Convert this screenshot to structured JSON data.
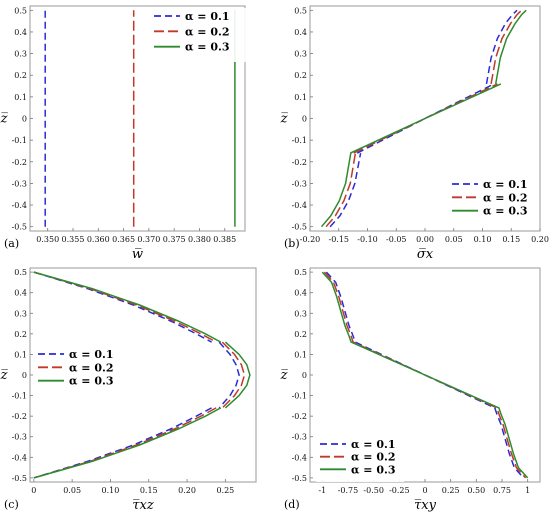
{
  "colors": {
    "alpha_0_1": "#2b2bd6",
    "alpha_0_2": "#c0392b",
    "alpha_0_3": "#2e8b2e"
  },
  "legend_entries": [
    "α = 0.1",
    "α = 0.2",
    "α = 0.3"
  ],
  "chart_data": [
    {
      "type": "line",
      "panel_label": "(a)",
      "xlabel": "w̅",
      "ylabel": "z̅",
      "xlim": [
        0.3465,
        0.389
      ],
      "ylim": [
        -0.52,
        0.52
      ],
      "xticks": [
        0.35,
        0.355,
        0.36,
        0.365,
        0.37,
        0.375,
        0.38,
        0.385
      ],
      "xtick_labels": [
        "0.350",
        "0.355",
        "0.360",
        "0.365",
        "0.370",
        "0.375",
        "0.380",
        "0.385"
      ],
      "yticks": [
        -0.5,
        -0.4,
        -0.3,
        -0.2,
        -0.1,
        0,
        0.1,
        0.2,
        0.3,
        0.4,
        0.5
      ],
      "ytick_labels": [
        "-0.5",
        "-0.4",
        "-0.3",
        "-0.2",
        "-0.1",
        "0",
        "0.1",
        "0.2",
        "0.3",
        "0.4",
        "0.5"
      ],
      "legend_position": "top-right",
      "series": [
        {
          "name": "α = 0.1",
          "x": [
            0.3495,
            0.3495
          ],
          "y": [
            -0.5,
            0.5
          ]
        },
        {
          "name": "α = 0.2",
          "x": [
            0.367,
            0.367
          ],
          "y": [
            -0.5,
            0.5
          ]
        },
        {
          "name": "α = 0.3",
          "x": [
            0.387,
            0.387
          ],
          "y": [
            -0.5,
            0.5
          ]
        }
      ]
    },
    {
      "type": "line",
      "panel_label": "(b)",
      "xlabel": "σ̅x",
      "ylabel": "z̅",
      "xlim": [
        -0.2,
        0.2
      ],
      "ylim": [
        -0.52,
        0.52
      ],
      "xticks": [
        -0.2,
        -0.15,
        -0.1,
        -0.05,
        0,
        0.05,
        0.1,
        0.15,
        0.2
      ],
      "xtick_labels": [
        "-0.20",
        "-0.15",
        "-0.10",
        "-0.05",
        "0.00",
        "0.05",
        "0.10",
        "0.15",
        "0.20"
      ],
      "yticks": [
        -0.5,
        -0.4,
        -0.3,
        -0.2,
        -0.1,
        0,
        0.1,
        0.2,
        0.3,
        0.4,
        0.5
      ],
      "ytick_labels": [
        "-0.5",
        "-0.4",
        "-0.3",
        "-0.2",
        "-0.1",
        "0",
        "0.1",
        "0.2",
        "0.3",
        "0.4",
        "0.5"
      ],
      "legend_position": "bottom-right",
      "series": [
        {
          "name": "α = 0.1",
          "x": [
            -0.165,
            -0.148,
            -0.133,
            -0.122,
            -0.112,
            null,
            -0.118,
            0,
            0.12,
            null,
            0.107,
            0.115,
            0.126,
            0.14,
            0.152,
            0.16
          ],
          "y": [
            -0.5,
            -0.45,
            -0.38,
            -0.3,
            -0.16,
            null,
            -0.16,
            0,
            0.16,
            null,
            0.16,
            0.28,
            0.37,
            0.44,
            0.48,
            0.5
          ]
        },
        {
          "name": "α = 0.2",
          "x": [
            -0.172,
            -0.156,
            -0.141,
            -0.13,
            -0.121,
            null,
            -0.124,
            0,
            0.126,
            null,
            0.115,
            0.123,
            0.134,
            0.149,
            0.16,
            0.168
          ],
          "y": [
            -0.5,
            -0.45,
            -0.38,
            -0.3,
            -0.16,
            null,
            -0.16,
            0,
            0.16,
            null,
            0.16,
            0.28,
            0.37,
            0.44,
            0.48,
            0.5
          ]
        },
        {
          "name": "α = 0.3",
          "x": [
            -0.18,
            -0.164,
            -0.149,
            -0.138,
            -0.129,
            null,
            -0.13,
            0,
            0.132,
            null,
            0.123,
            0.131,
            0.142,
            0.157,
            0.168,
            0.176
          ],
          "y": [
            -0.5,
            -0.45,
            -0.38,
            -0.3,
            -0.16,
            null,
            -0.16,
            0,
            0.16,
            null,
            0.16,
            0.28,
            0.37,
            0.44,
            0.48,
            0.5
          ]
        }
      ]
    },
    {
      "type": "line",
      "panel_label": "(c)",
      "xlabel": "τ̅xz",
      "ylabel": "z̅",
      "xlim": [
        -0.005,
        0.29
      ],
      "ylim": [
        -0.52,
        0.52
      ],
      "xticks": [
        0,
        0.05,
        0.1,
        0.15,
        0.2,
        0.25
      ],
      "xtick_labels": [
        "0",
        "0.05",
        "0.10",
        "0.15",
        "0.20",
        "0.25"
      ],
      "yticks": [
        -0.5,
        -0.4,
        -0.3,
        -0.2,
        -0.1,
        0,
        0.1,
        0.2,
        0.3,
        0.4,
        0.5
      ],
      "ytick_labels": [
        "-0.5",
        "-0.4",
        "-0.3",
        "-0.2",
        "-0.1",
        "0",
        "0.1",
        "0.2",
        "0.3",
        "0.4",
        "0.5"
      ],
      "legend_position": "center-left",
      "series": [
        {
          "name": "α = 0.1",
          "x": [
            0,
            0.07,
            0.13,
            0.18,
            0.212,
            0.232,
            null,
            0.242,
            0.256,
            0.264,
            0.268,
            0.264,
            0.256,
            0.242,
            null,
            0.232,
            0.212,
            0.18,
            0.13,
            0.07,
            0
          ],
          "y": [
            0.5,
            0.42,
            0.34,
            0.26,
            0.2,
            0.16,
            null,
            0.16,
            0.1,
            0.05,
            0,
            -0.05,
            -0.1,
            -0.16,
            null,
            -0.16,
            -0.2,
            -0.26,
            -0.34,
            -0.42,
            -0.5
          ]
        },
        {
          "name": "α = 0.2",
          "x": [
            0,
            0.073,
            0.134,
            0.185,
            0.218,
            0.238,
            null,
            0.246,
            0.262,
            0.271,
            0.275,
            0.271,
            0.262,
            0.246,
            null,
            0.238,
            0.218,
            0.185,
            0.134,
            0.073,
            0
          ],
          "y": [
            0.5,
            0.42,
            0.34,
            0.26,
            0.2,
            0.16,
            null,
            0.16,
            0.1,
            0.05,
            0,
            -0.05,
            -0.1,
            -0.16,
            null,
            -0.16,
            -0.2,
            -0.26,
            -0.34,
            -0.42,
            -0.5
          ]
        },
        {
          "name": "α = 0.3",
          "x": [
            0,
            0.076,
            0.138,
            0.19,
            0.224,
            0.244,
            null,
            0.25,
            0.268,
            0.278,
            0.282,
            0.278,
            0.268,
            0.25,
            null,
            0.244,
            0.224,
            0.19,
            0.138,
            0.076,
            0
          ],
          "y": [
            0.5,
            0.42,
            0.34,
            0.26,
            0.2,
            0.16,
            null,
            0.16,
            0.1,
            0.05,
            0,
            -0.05,
            -0.1,
            -0.16,
            null,
            -0.16,
            -0.2,
            -0.26,
            -0.34,
            -0.42,
            -0.5
          ]
        }
      ]
    },
    {
      "type": "line",
      "panel_label": "(d)",
      "xlabel": "τ̅xy",
      "ylabel": "z̅",
      "xlim": [
        -1.12,
        1.12
      ],
      "ylim": [
        -0.52,
        0.52
      ],
      "xticks": [
        -1,
        -0.75,
        -0.5,
        -0.25,
        0,
        0.25,
        0.5,
        0.75,
        1
      ],
      "xtick_labels": [
        "-1",
        "-0.75",
        "-0.50",
        "-0.25",
        "0",
        "0.25",
        "0.50",
        "0.75",
        "1"
      ],
      "yticks": [
        -0.5,
        -0.4,
        -0.3,
        -0.2,
        -0.1,
        0,
        0.1,
        0.2,
        0.3,
        0.4,
        0.5
      ],
      "ytick_labels": [
        "-0.5",
        "-0.4",
        "-0.3",
        "-0.2",
        "-0.1",
        "0",
        "0.1",
        "0.2",
        "0.3",
        "0.4",
        "0.5"
      ],
      "legend_position": "bottom-left",
      "series": [
        {
          "name": "α = 0.1",
          "x": [
            -0.96,
            -0.87,
            -0.82,
            -0.78,
            -0.74,
            -0.7,
            -0.68,
            0,
            0.68,
            0.7,
            0.74,
            0.78,
            0.82,
            0.87,
            0.96
          ],
          "y": [
            0.5,
            0.45,
            0.38,
            0.31,
            0.24,
            0.19,
            0.16,
            0,
            -0.16,
            -0.19,
            -0.24,
            -0.31,
            -0.38,
            -0.45,
            -0.5
          ]
        },
        {
          "name": "α = 0.2",
          "x": [
            -0.98,
            -0.89,
            -0.84,
            -0.8,
            -0.76,
            -0.72,
            -0.7,
            0,
            0.7,
            0.72,
            0.76,
            0.8,
            0.84,
            0.89,
            0.98
          ],
          "y": [
            0.5,
            0.45,
            0.38,
            0.31,
            0.24,
            0.19,
            0.16,
            0,
            -0.16,
            -0.19,
            -0.24,
            -0.31,
            -0.38,
            -0.45,
            -0.5
          ]
        },
        {
          "name": "α = 0.3",
          "x": [
            -1.0,
            -0.91,
            -0.86,
            -0.82,
            -0.78,
            -0.74,
            -0.72,
            0,
            0.72,
            0.74,
            0.78,
            0.82,
            0.86,
            0.91,
            1.0
          ],
          "y": [
            0.5,
            0.45,
            0.38,
            0.31,
            0.24,
            0.19,
            0.16,
            0,
            -0.16,
            -0.19,
            -0.24,
            -0.31,
            -0.38,
            -0.45,
            -0.5
          ]
        }
      ]
    }
  ]
}
